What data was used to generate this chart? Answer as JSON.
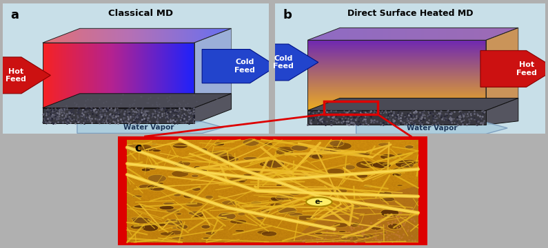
{
  "panel_a_title": "Classical MD",
  "panel_b_title": "Direct Surface Heated MD",
  "label_a": "a",
  "label_b": "b",
  "label_c": "c",
  "bg_panel": "#c8dfe8",
  "hot_feed": "Hot\nFeed",
  "cold_feed": "Cold\nFeed",
  "water_vapor": "Water Vapor",
  "electron": "e-",
  "overall_bg": "#b0b0b0",
  "red_color": "#dd0000",
  "hot_arrow_color": "#cc1111",
  "cold_arrow_color": "#2255cc"
}
